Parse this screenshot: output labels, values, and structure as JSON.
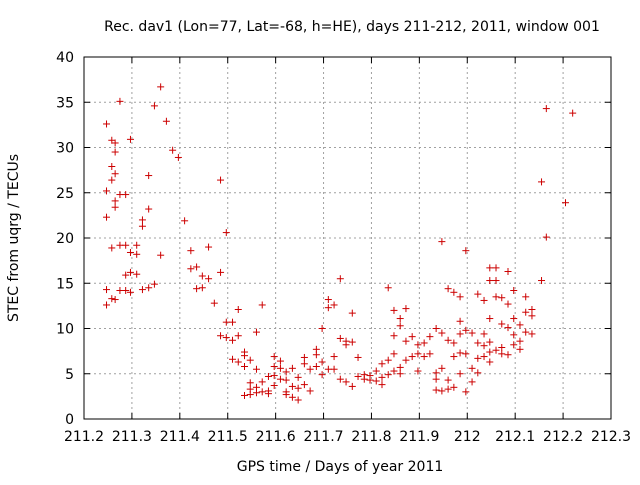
{
  "chart_data": {
    "type": "scatter",
    "title": "Rec. dav1 (Lon=77, Lat=-68, h=HE), days 211-212, 2011, window 001",
    "xlabel": "GPS time / Days of year 2011",
    "ylabel": "STEC from uqrg / TECUs",
    "xlim": [
      211.2,
      212.3
    ],
    "ylim": [
      0,
      40
    ],
    "x_ticks": [
      211.2,
      211.3,
      211.4,
      211.5,
      211.6,
      211.7,
      211.8,
      211.9,
      212,
      212.1,
      212.2,
      212.3
    ],
    "x_tick_labels": [
      "211.2",
      "211.3",
      "211.4",
      "211.5",
      "211.6",
      "211.7",
      "211.8",
      "211.9",
      "212",
      "212.1",
      "212.2",
      "212.3"
    ],
    "y_ticks": [
      0,
      5,
      10,
      15,
      20,
      25,
      30,
      35,
      40
    ],
    "y_tick_labels": [
      "0",
      "5",
      "10",
      "15",
      "20",
      "25",
      "30",
      "35",
      "40"
    ],
    "grid": true,
    "marker": "+",
    "marker_color": "#cc0000",
    "points": [
      [
        211.247,
        32.6
      ],
      [
        211.247,
        25.2
      ],
      [
        211.247,
        22.3
      ],
      [
        211.247,
        14.3
      ],
      [
        211.247,
        12.6
      ],
      [
        211.258,
        30.8
      ],
      [
        211.258,
        27.9
      ],
      [
        211.258,
        26.4
      ],
      [
        211.258,
        18.9
      ],
      [
        211.258,
        13.3
      ],
      [
        211.265,
        30.5
      ],
      [
        211.265,
        29.5
      ],
      [
        211.265,
        27.1
      ],
      [
        211.265,
        24.1
      ],
      [
        211.265,
        23.4
      ],
      [
        211.265,
        13.2
      ],
      [
        211.275,
        35.1
      ],
      [
        211.275,
        24.8
      ],
      [
        211.275,
        19.2
      ],
      [
        211.275,
        14.2
      ],
      [
        211.287,
        24.8
      ],
      [
        211.287,
        19.2
      ],
      [
        211.287,
        15.9
      ],
      [
        211.287,
        14.2
      ],
      [
        211.297,
        30.9
      ],
      [
        211.297,
        18.4
      ],
      [
        211.297,
        16.2
      ],
      [
        211.297,
        14.0
      ],
      [
        211.31,
        18.2
      ],
      [
        211.31,
        16.0
      ],
      [
        211.31,
        19.2
      ],
      [
        211.322,
        22.0
      ],
      [
        211.322,
        21.3
      ],
      [
        211.322,
        14.3
      ],
      [
        211.335,
        26.9
      ],
      [
        211.335,
        23.2
      ],
      [
        211.335,
        14.5
      ],
      [
        211.347,
        34.6
      ],
      [
        211.347,
        14.9
      ],
      [
        211.36,
        36.7
      ],
      [
        211.36,
        18.1
      ],
      [
        211.372,
        32.9
      ],
      [
        211.385,
        29.7
      ],
      [
        211.397,
        28.9
      ],
      [
        211.41,
        21.9
      ],
      [
        211.423,
        18.6
      ],
      [
        211.423,
        16.6
      ],
      [
        211.435,
        16.8
      ],
      [
        211.435,
        14.4
      ],
      [
        211.447,
        15.8
      ],
      [
        211.447,
        14.5
      ],
      [
        211.46,
        19.0
      ],
      [
        211.46,
        15.5
      ],
      [
        211.472,
        12.8
      ],
      [
        211.485,
        26.4
      ],
      [
        211.485,
        16.2
      ],
      [
        211.485,
        9.2
      ],
      [
        211.497,
        20.6
      ],
      [
        211.497,
        10.7
      ],
      [
        211.497,
        9.0
      ],
      [
        211.51,
        10.7
      ],
      [
        211.51,
        8.7
      ],
      [
        211.51,
        6.6
      ],
      [
        211.522,
        12.1
      ],
      [
        211.522,
        9.2
      ],
      [
        211.522,
        6.3
      ],
      [
        211.535,
        7.4
      ],
      [
        211.535,
        7.0
      ],
      [
        211.535,
        5.8
      ],
      [
        211.535,
        2.6
      ],
      [
        211.547,
        6.5
      ],
      [
        211.547,
        4.0
      ],
      [
        211.547,
        3.3
      ],
      [
        211.547,
        2.7
      ],
      [
        211.56,
        9.6
      ],
      [
        211.56,
        5.5
      ],
      [
        211.56,
        3.5
      ],
      [
        211.56,
        2.9
      ],
      [
        211.572,
        12.6
      ],
      [
        211.572,
        4.1
      ],
      [
        211.572,
        3.0
      ],
      [
        211.585,
        4.7
      ],
      [
        211.585,
        3.1
      ],
      [
        211.585,
        2.8
      ],
      [
        211.597,
        6.9
      ],
      [
        211.597,
        5.8
      ],
      [
        211.597,
        4.8
      ],
      [
        211.597,
        3.7
      ],
      [
        211.61,
        6.4
      ],
      [
        211.61,
        5.6
      ],
      [
        211.61,
        4.4
      ],
      [
        211.622,
        5.2
      ],
      [
        211.622,
        4.3
      ],
      [
        211.622,
        3.0
      ],
      [
        211.622,
        2.7
      ],
      [
        211.635,
        5.6
      ],
      [
        211.635,
        3.6
      ],
      [
        211.635,
        2.4
      ],
      [
        211.647,
        4.6
      ],
      [
        211.647,
        3.4
      ],
      [
        211.647,
        2.1
      ],
      [
        211.66,
        6.8
      ],
      [
        211.66,
        6.1
      ],
      [
        211.66,
        3.8
      ],
      [
        211.672,
        5.5
      ],
      [
        211.672,
        3.1
      ],
      [
        211.685,
        7.7
      ],
      [
        211.685,
        7.1
      ],
      [
        211.685,
        5.8
      ],
      [
        211.697,
        10.0
      ],
      [
        211.697,
        6.3
      ],
      [
        211.697,
        4.9
      ],
      [
        211.71,
        13.2
      ],
      [
        211.71,
        12.3
      ],
      [
        211.71,
        5.5
      ],
      [
        211.722,
        12.6
      ],
      [
        211.722,
        6.9
      ],
      [
        211.722,
        5.5
      ],
      [
        211.735,
        15.5
      ],
      [
        211.735,
        8.9
      ],
      [
        211.735,
        4.4
      ],
      [
        211.747,
        8.6
      ],
      [
        211.747,
        8.2
      ],
      [
        211.747,
        4.1
      ],
      [
        211.76,
        11.7
      ],
      [
        211.76,
        8.5
      ],
      [
        211.76,
        3.6
      ],
      [
        211.772,
        6.8
      ],
      [
        211.772,
        4.7
      ],
      [
        211.785,
        4.9
      ],
      [
        211.785,
        4.4
      ],
      [
        211.797,
        4.8
      ],
      [
        211.797,
        4.3
      ],
      [
        211.81,
        5.3
      ],
      [
        211.81,
        4.2
      ],
      [
        211.822,
        6.1
      ],
      [
        211.822,
        4.6
      ],
      [
        211.822,
        3.8
      ],
      [
        211.835,
        14.5
      ],
      [
        211.835,
        6.5
      ],
      [
        211.835,
        4.9
      ],
      [
        211.847,
        12.0
      ],
      [
        211.847,
        9.2
      ],
      [
        211.847,
        7.2
      ],
      [
        211.847,
        5.3
      ],
      [
        211.86,
        11.1
      ],
      [
        211.86,
        10.3
      ],
      [
        211.86,
        5.7
      ],
      [
        211.86,
        5.0
      ],
      [
        211.872,
        12.2
      ],
      [
        211.872,
        8.6
      ],
      [
        211.872,
        6.5
      ],
      [
        211.885,
        9.1
      ],
      [
        211.885,
        6.9
      ],
      [
        211.897,
        8.2
      ],
      [
        211.897,
        7.2
      ],
      [
        211.897,
        5.3
      ],
      [
        211.91,
        8.4
      ],
      [
        211.91,
        6.9
      ],
      [
        211.922,
        9.1
      ],
      [
        211.922,
        7.2
      ],
      [
        211.935,
        10.0
      ],
      [
        211.935,
        5.1
      ],
      [
        211.935,
        4.4
      ],
      [
        211.935,
        3.2
      ],
      [
        211.947,
        19.6
      ],
      [
        211.947,
        9.5
      ],
      [
        211.947,
        5.6
      ],
      [
        211.947,
        3.1
      ],
      [
        211.96,
        14.4
      ],
      [
        211.96,
        8.7
      ],
      [
        211.96,
        4.3
      ],
      [
        211.96,
        3.3
      ],
      [
        211.972,
        14.0
      ],
      [
        211.972,
        8.4
      ],
      [
        211.972,
        6.9
      ],
      [
        211.972,
        3.5
      ],
      [
        211.985,
        13.5
      ],
      [
        211.985,
        10.8
      ],
      [
        211.985,
        9.4
      ],
      [
        211.985,
        7.3
      ],
      [
        211.985,
        5.0
      ],
      [
        211.997,
        18.6
      ],
      [
        211.997,
        9.8
      ],
      [
        211.997,
        7.2
      ],
      [
        211.997,
        3.0
      ],
      [
        212.01,
        9.5
      ],
      [
        212.01,
        5.6
      ],
      [
        212.01,
        4.1
      ],
      [
        212.022,
        13.8
      ],
      [
        212.022,
        8.4
      ],
      [
        212.022,
        6.7
      ],
      [
        212.022,
        5.1
      ],
      [
        212.035,
        13.1
      ],
      [
        212.035,
        9.4
      ],
      [
        212.035,
        8.1
      ],
      [
        212.035,
        6.9
      ],
      [
        212.047,
        16.7
      ],
      [
        212.047,
        15.3
      ],
      [
        212.047,
        11.1
      ],
      [
        212.047,
        8.5
      ],
      [
        212.047,
        7.4
      ],
      [
        212.047,
        6.3
      ],
      [
        212.06,
        16.7
      ],
      [
        212.06,
        15.3
      ],
      [
        212.06,
        13.5
      ],
      [
        212.06,
        7.6
      ],
      [
        212.072,
        13.4
      ],
      [
        212.072,
        10.5
      ],
      [
        212.072,
        7.9
      ],
      [
        212.072,
        7.2
      ],
      [
        212.085,
        16.3
      ],
      [
        212.085,
        12.7
      ],
      [
        212.085,
        10.1
      ],
      [
        212.085,
        7.1
      ],
      [
        212.097,
        14.2
      ],
      [
        212.097,
        11.1
      ],
      [
        212.097,
        9.3
      ],
      [
        212.097,
        8.2
      ],
      [
        212.11,
        10.4
      ],
      [
        212.11,
        8.6
      ],
      [
        212.11,
        7.7
      ],
      [
        212.122,
        13.5
      ],
      [
        212.122,
        11.8
      ],
      [
        212.122,
        9.6
      ],
      [
        212.135,
        12.1
      ],
      [
        212.135,
        11.4
      ],
      [
        212.135,
        9.4
      ],
      [
        212.155,
        26.2
      ],
      [
        212.155,
        15.3
      ],
      [
        212.165,
        34.3
      ],
      [
        212.165,
        20.1
      ],
      [
        212.205,
        23.9
      ],
      [
        212.22,
        33.8
      ]
    ]
  }
}
